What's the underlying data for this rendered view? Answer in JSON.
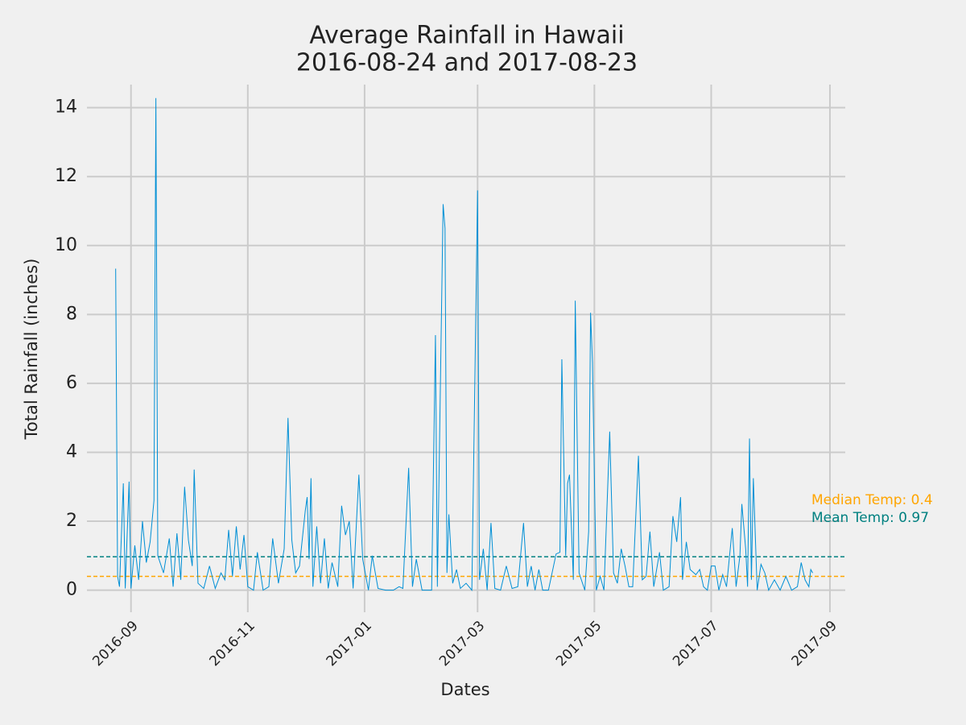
{
  "chart_data": {
    "type": "line",
    "title": [
      "Average Rainfall in Hawaii",
      "2016-08-24 and 2017-08-23"
    ],
    "xlabel": "Dates",
    "ylabel": "Total Rainfall (inches)",
    "x": [
      "2016-08-24",
      "2016-08-25",
      "2016-08-26",
      "2016-08-28",
      "2016-08-29",
      "2016-08-31",
      "2016-09-01",
      "2016-09-03",
      "2016-09-05",
      "2016-09-07",
      "2016-09-09",
      "2016-09-11",
      "2016-09-13",
      "2016-09-14",
      "2016-09-15",
      "2016-09-18",
      "2016-09-21",
      "2016-09-23",
      "2016-09-25",
      "2016-09-27",
      "2016-09-29",
      "2016-10-01",
      "2016-10-03",
      "2016-10-04",
      "2016-10-06",
      "2016-10-09",
      "2016-10-12",
      "2016-10-15",
      "2016-10-18",
      "2016-10-20",
      "2016-10-22",
      "2016-10-24",
      "2016-10-26",
      "2016-10-28",
      "2016-10-30",
      "2016-11-01",
      "2016-11-04",
      "2016-11-06",
      "2016-11-09",
      "2016-11-12",
      "2016-11-14",
      "2016-11-17",
      "2016-11-20",
      "2016-11-22",
      "2016-11-24",
      "2016-11-26",
      "2016-11-28",
      "2016-12-01",
      "2016-12-02",
      "2016-12-03",
      "2016-12-04",
      "2016-12-05",
      "2016-12-07",
      "2016-12-09",
      "2016-12-11",
      "2016-12-13",
      "2016-12-15",
      "2016-12-18",
      "2016-12-20",
      "2016-12-22",
      "2016-12-24",
      "2016-12-26",
      "2016-12-29",
      "2016-12-31",
      "2017-01-03",
      "2017-01-05",
      "2017-01-08",
      "2017-01-12",
      "2017-01-16",
      "2017-01-19",
      "2017-01-21",
      "2017-01-24",
      "2017-01-26",
      "2017-01-28",
      "2017-01-31",
      "2017-02-03",
      "2017-02-05",
      "2017-02-07",
      "2017-02-08",
      "2017-02-11",
      "2017-02-12",
      "2017-02-13",
      "2017-02-14",
      "2017-02-16",
      "2017-02-18",
      "2017-02-20",
      "2017-02-23",
      "2017-02-26",
      "2017-03-01",
      "2017-03-02",
      "2017-03-04",
      "2017-03-06",
      "2017-03-08",
      "2017-03-10",
      "2017-03-13",
      "2017-03-16",
      "2017-03-19",
      "2017-03-22",
      "2017-03-25",
      "2017-03-27",
      "2017-03-29",
      "2017-03-31",
      "2017-04-02",
      "2017-04-04",
      "2017-04-07",
      "2017-04-11",
      "2017-04-13",
      "2017-04-14",
      "2017-04-16",
      "2017-04-17",
      "2017-04-18",
      "2017-04-20",
      "2017-04-21",
      "2017-04-23",
      "2017-04-26",
      "2017-04-28",
      "2017-04-29",
      "2017-04-30",
      "2017-05-02",
      "2017-05-04",
      "2017-05-06",
      "2017-05-09",
      "2017-05-11",
      "2017-05-13",
      "2017-05-15",
      "2017-05-17",
      "2017-05-19",
      "2017-05-21",
      "2017-05-24",
      "2017-05-26",
      "2017-05-28",
      "2017-05-30",
      "2017-06-01",
      "2017-06-04",
      "2017-06-06",
      "2017-06-09",
      "2017-06-11",
      "2017-06-13",
      "2017-06-15",
      "2017-06-16",
      "2017-06-18",
      "2017-06-20",
      "2017-06-23",
      "2017-06-25",
      "2017-06-27",
      "2017-06-29",
      "2017-07-01",
      "2017-07-03",
      "2017-07-05",
      "2017-07-07",
      "2017-07-09",
      "2017-07-12",
      "2017-07-14",
      "2017-07-16",
      "2017-07-17",
      "2017-07-19",
      "2017-07-20",
      "2017-07-21",
      "2017-07-22",
      "2017-07-23",
      "2017-07-25",
      "2017-07-27",
      "2017-07-29",
      "2017-07-31",
      "2017-08-03",
      "2017-08-06",
      "2017-08-09",
      "2017-08-12",
      "2017-08-15",
      "2017-08-17",
      "2017-08-19",
      "2017-08-21",
      "2017-08-22",
      "2017-08-23"
    ],
    "series": [
      {
        "name": "Rainfall",
        "color": "#008fd5",
        "values": [
          9.33,
          0.4,
          0.1,
          3.1,
          0.05,
          3.15,
          0.05,
          1.3,
          0.3,
          2.0,
          0.8,
          1.4,
          2.6,
          14.28,
          1.0,
          0.5,
          1.5,
          0.1,
          1.65,
          0.3,
          3.0,
          1.45,
          0.7,
          3.5,
          0.2,
          0.05,
          0.7,
          0.05,
          0.5,
          0.3,
          1.75,
          0.4,
          1.85,
          0.6,
          1.6,
          0.1,
          0.0,
          1.1,
          0.0,
          0.1,
          1.5,
          0.2,
          1.2,
          5.0,
          1.45,
          0.5,
          0.7,
          2.3,
          2.7,
          0.9,
          3.25,
          0.1,
          1.85,
          0.2,
          1.5,
          0.05,
          0.8,
          0.1,
          2.45,
          1.6,
          2.0,
          0.05,
          3.35,
          0.9,
          0.0,
          1.0,
          0.05,
          0.0,
          0.0,
          0.1,
          0.05,
          3.55,
          0.1,
          0.9,
          0.0,
          0.0,
          0.0,
          7.4,
          0.1,
          11.2,
          10.5,
          0.5,
          2.2,
          0.2,
          0.6,
          0.05,
          0.2,
          0.0,
          11.6,
          0.3,
          1.2,
          0.0,
          1.95,
          0.05,
          0.0,
          0.7,
          0.05,
          0.1,
          1.95,
          0.1,
          0.7,
          0.0,
          0.6,
          0.0,
          0.0,
          1.05,
          1.1,
          6.7,
          1.0,
          3.1,
          3.35,
          0.3,
          8.4,
          0.5,
          0.0,
          1.7,
          8.05,
          6.6,
          0.0,
          0.4,
          0.0,
          4.6,
          0.5,
          0.2,
          1.2,
          0.7,
          0.1,
          0.1,
          3.9,
          0.3,
          0.4,
          1.7,
          0.1,
          1.1,
          0.0,
          0.1,
          2.15,
          1.4,
          2.7,
          0.3,
          1.4,
          0.6,
          0.45,
          0.6,
          0.1,
          0.0,
          0.7,
          0.7,
          0.0,
          0.45,
          0.1,
          1.8,
          0.1,
          1.0,
          2.5,
          1.2,
          0.1,
          4.4,
          0.3,
          3.25,
          0.0,
          0.75,
          0.5,
          0.0,
          0.3,
          0.0,
          0.4,
          0.0,
          0.1,
          0.8,
          0.3,
          0.1,
          0.6,
          0.5
        ]
      }
    ],
    "hlines": [
      {
        "label": "Median Temp: 0.4",
        "value": 0.4,
        "color": "#ffa500"
      },
      {
        "label": "Mean Temp: 0.97",
        "value": 0.97,
        "color": "#008080"
      }
    ],
    "xlim": [
      "2016-08-09",
      "2017-09-09"
    ],
    "xticks": [
      {
        "value": "2016-09-01",
        "label": "2016-09"
      },
      {
        "value": "2016-11-01",
        "label": "2016-11"
      },
      {
        "value": "2017-01-01",
        "label": "2017-01"
      },
      {
        "value": "2017-03-01",
        "label": "2017-03"
      },
      {
        "value": "2017-05-01",
        "label": "2017-05"
      },
      {
        "value": "2017-07-01",
        "label": "2017-07"
      },
      {
        "value": "2017-09-01",
        "label": "2017-09"
      }
    ],
    "ylim": [
      -0.64,
      14.67
    ],
    "yticks": [
      0,
      2,
      4,
      6,
      8,
      10,
      12,
      14
    ],
    "grid": true
  }
}
